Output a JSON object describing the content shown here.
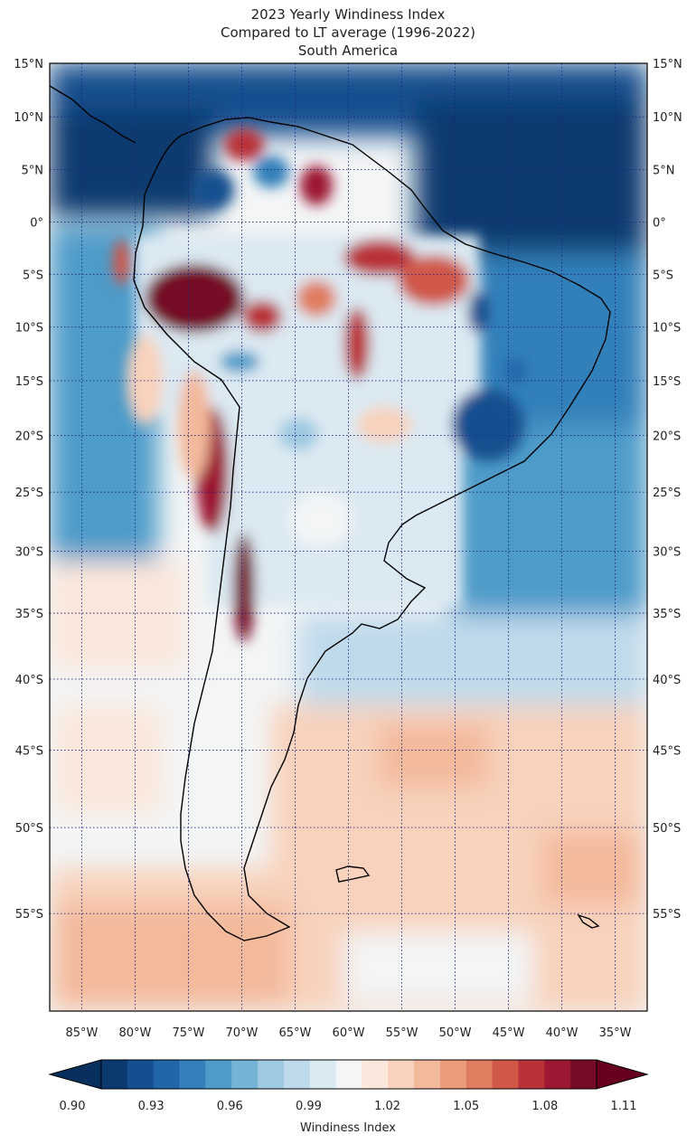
{
  "title": {
    "line1": "2023 Yearly Windiness Index",
    "line2": "Compared to LT average (1996-2022)",
    "line3": "South America"
  },
  "map": {
    "lat_labels": [
      "15°N",
      "10°N",
      "5°N",
      "0°",
      "5°S",
      "10°S",
      "15°S",
      "20°S",
      "25°S",
      "30°S",
      "35°S",
      "40°S",
      "45°S",
      "50°S",
      "55°S"
    ],
    "lat_values": [
      15,
      10,
      5,
      0,
      -5,
      -10,
      -15,
      -20,
      -25,
      -30,
      -35,
      -40,
      -45,
      -50,
      -55
    ],
    "lon_labels": [
      "85°W",
      "80°W",
      "75°W",
      "70°W",
      "65°W",
      "60°W",
      "55°W",
      "50°W",
      "45°W",
      "40°W",
      "35°W"
    ],
    "lon_values": [
      -85,
      -80,
      -75,
      -70,
      -65,
      -60,
      -55,
      -50,
      -45,
      -40,
      -35
    ],
    "extent": {
      "lon_min": -88,
      "lon_max": -32,
      "lat_min": -60,
      "lat_max": 15
    },
    "projection": "mercator",
    "colormap": "RdBu_r",
    "regions": [
      {
        "name": "caribbean-low",
        "lon": -82,
        "lat": 6,
        "value": 0.9
      },
      {
        "name": "atlantic-north-low",
        "lon": -40,
        "lat": 6,
        "value": 0.91
      },
      {
        "name": "atlantic-equator-low",
        "lon": -33,
        "lat": 0,
        "value": 0.92
      },
      {
        "name": "pacific-east-low",
        "lon": -85,
        "lat": -12,
        "value": 0.94
      },
      {
        "name": "peru-high",
        "lon": -74,
        "lat": -8,
        "value": 1.1
      },
      {
        "name": "andes-atacama-high",
        "lon": -71,
        "lat": -22,
        "value": 1.1
      },
      {
        "name": "andes-central-high",
        "lon": -69.5,
        "lat": -33,
        "value": 1.1
      },
      {
        "name": "amazon-high",
        "lon": -54,
        "lat": -3,
        "value": 1.08
      },
      {
        "name": "venezuela-high",
        "lon": -66,
        "lat": 8,
        "value": 1.07
      },
      {
        "name": "brazil-southeast-low",
        "lon": -45,
        "lat": -19,
        "value": 0.91
      },
      {
        "name": "brazil-northeast-low",
        "lon": -46,
        "lat": -8,
        "value": 0.93
      },
      {
        "name": "atlantic-south-low",
        "lon": -38,
        "lat": -25,
        "value": 0.95
      },
      {
        "name": "la-plata-low",
        "lon": -55,
        "lat": -37,
        "value": 0.96
      },
      {
        "name": "pacific-south-high",
        "lon": -80,
        "lat": -55,
        "value": 1.05
      },
      {
        "name": "atlantic-patagonia-high",
        "lon": -50,
        "lat": -45,
        "value": 1.04
      },
      {
        "name": "atlantic-far-south-high",
        "lon": -38,
        "lat": -51,
        "value": 1.05
      }
    ]
  },
  "colorbar": {
    "ticks": [
      "0.90",
      "0.93",
      "0.96",
      "0.99",
      "1.02",
      "1.05",
      "1.08",
      "1.11"
    ],
    "label": "Windiness Index",
    "colors": [
      "#0b3a70",
      "#144f8f",
      "#2066a8",
      "#3380ba",
      "#4e9bc9",
      "#75b3d5",
      "#9dc9e1",
      "#bfdaeb",
      "#dbe9f2",
      "#f3f5f6",
      "#fbe7db",
      "#f8d2bc",
      "#f3b99b",
      "#eb9c7c",
      "#e07d60",
      "#cf5849",
      "#b93139",
      "#9c1731",
      "#750b26"
    ],
    "under_color": "#08305e",
    "over_color": "#67001f"
  }
}
